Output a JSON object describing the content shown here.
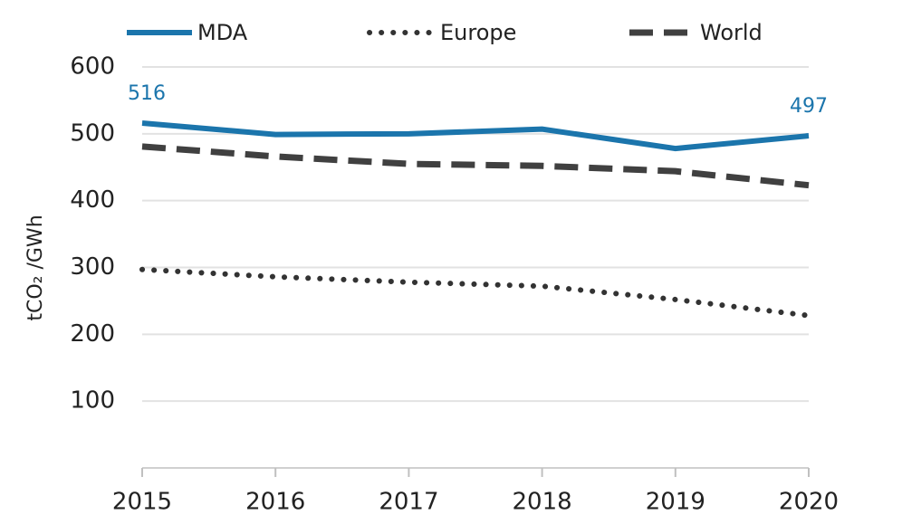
{
  "chart_data": {
    "type": "line",
    "y_label": "tCO₂ /GWh",
    "categories": [
      "2015",
      "2016",
      "2017",
      "2018",
      "2019",
      "2020"
    ],
    "series": [
      {
        "name": "MDA",
        "color": "#1b75ac",
        "style": "solid",
        "values": [
          516,
          499,
          500,
          507,
          478,
          497
        ],
        "data_labels": [
          0,
          5
        ]
      },
      {
        "name": "Europe",
        "color": "#333333",
        "style": "dotted",
        "values": [
          297,
          286,
          278,
          272,
          252,
          228
        ]
      },
      {
        "name": "World",
        "color": "#404040",
        "style": "dashed",
        "values": [
          481,
          466,
          455,
          452,
          444,
          423
        ]
      }
    ],
    "ylim": [
      0,
      600
    ],
    "yticks": [
      100,
      200,
      300,
      400,
      500,
      600
    ],
    "grid": true,
    "legend": "top"
  }
}
